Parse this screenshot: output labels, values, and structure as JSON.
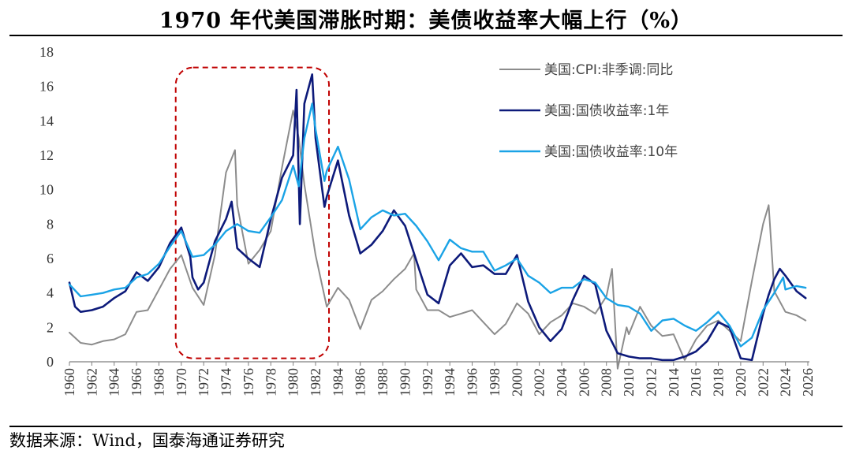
{
  "title": "1970 年代美国滞胀时期：美债收益率大幅上行（%）",
  "source": "数据来源：Wind，国泰海通证券研究",
  "chart_data": {
    "type": "line",
    "xlim": [
      1960,
      2026
    ],
    "ylim": [
      0,
      18
    ],
    "x_ticks": [
      "1960",
      "1962",
      "1964",
      "1966",
      "1968",
      "1970",
      "1972",
      "1974",
      "1976",
      "1978",
      "1980",
      "1982",
      "1984",
      "1986",
      "1988",
      "1990",
      "1992",
      "1994",
      "1996",
      "1998",
      "2000",
      "2002",
      "2004",
      "2006",
      "2008",
      "2010",
      "2012",
      "2014",
      "2016",
      "2018",
      "2020",
      "2022",
      "2024",
      "2026"
    ],
    "y_ticks": [
      "0",
      "2",
      "4",
      "6",
      "8",
      "10",
      "12",
      "14",
      "16",
      "18"
    ],
    "grid": false,
    "legend_position": "top-right",
    "highlight_box": {
      "x_range": [
        1969.5,
        1983.2
      ],
      "y_range": [
        0.2,
        17.1
      ],
      "color": "#c00000",
      "style": "dashed"
    },
    "series": [
      {
        "name": "美国:CPI:非季调:同比",
        "color": "#8c8c8c",
        "points": [
          [
            1960,
            1.7
          ],
          [
            1961,
            1.1
          ],
          [
            1962,
            1.0
          ],
          [
            1963,
            1.2
          ],
          [
            1964,
            1.3
          ],
          [
            1965,
            1.6
          ],
          [
            1966,
            2.9
          ],
          [
            1967,
            3.0
          ],
          [
            1968,
            4.2
          ],
          [
            1969,
            5.4
          ],
          [
            1970,
            6.2
          ],
          [
            1971,
            4.3
          ],
          [
            1972,
            3.3
          ],
          [
            1973,
            6.2
          ],
          [
            1974,
            11.0
          ],
          [
            1974.8,
            12.3
          ],
          [
            1975,
            9.1
          ],
          [
            1976,
            5.7
          ],
          [
            1977,
            6.5
          ],
          [
            1978,
            7.6
          ],
          [
            1979,
            11.3
          ],
          [
            1980,
            14.6
          ],
          [
            1980.5,
            13.0
          ],
          [
            1981,
            10.3
          ],
          [
            1982,
            6.2
          ],
          [
            1983,
            3.2
          ],
          [
            1984,
            4.3
          ],
          [
            1985,
            3.6
          ],
          [
            1986,
            1.9
          ],
          [
            1987,
            3.6
          ],
          [
            1988,
            4.1
          ],
          [
            1989,
            4.8
          ],
          [
            1990,
            5.4
          ],
          [
            1990.8,
            6.3
          ],
          [
            1991,
            4.2
          ],
          [
            1992,
            3.0
          ],
          [
            1993,
            3.0
          ],
          [
            1994,
            2.6
          ],
          [
            1995,
            2.8
          ],
          [
            1996,
            3.0
          ],
          [
            1997,
            2.3
          ],
          [
            1998,
            1.6
          ],
          [
            1999,
            2.2
          ],
          [
            2000,
            3.4
          ],
          [
            2001,
            2.8
          ],
          [
            2002,
            1.6
          ],
          [
            2003,
            2.3
          ],
          [
            2004,
            2.7
          ],
          [
            2005,
            3.4
          ],
          [
            2006,
            3.2
          ],
          [
            2007,
            2.8
          ],
          [
            2008,
            3.8
          ],
          [
            2008.5,
            5.4
          ],
          [
            2009,
            -0.4
          ],
          [
            2009.8,
            2.0
          ],
          [
            2010,
            1.6
          ],
          [
            2011,
            3.2
          ],
          [
            2012,
            2.1
          ],
          [
            2013,
            1.5
          ],
          [
            2014,
            1.6
          ],
          [
            2015,
            0.1
          ],
          [
            2016,
            1.3
          ],
          [
            2017,
            2.1
          ],
          [
            2018,
            2.4
          ],
          [
            2019,
            1.8
          ],
          [
            2020,
            1.2
          ],
          [
            2021,
            4.7
          ],
          [
            2022,
            8.0
          ],
          [
            2022.5,
            9.1
          ],
          [
            2023,
            4.1
          ],
          [
            2024,
            2.9
          ],
          [
            2025,
            2.7
          ],
          [
            2025.8,
            2.4
          ]
        ]
      },
      {
        "name": "美国:国债收益率:1年",
        "color": "#0d1a7a",
        "points": [
          [
            1960,
            4.6
          ],
          [
            1960.5,
            3.2
          ],
          [
            1961,
            2.9
          ],
          [
            1962,
            3.0
          ],
          [
            1963,
            3.2
          ],
          [
            1964,
            3.7
          ],
          [
            1965,
            4.1
          ],
          [
            1966,
            5.2
          ],
          [
            1967,
            4.7
          ],
          [
            1968,
            5.5
          ],
          [
            1969,
            6.9
          ],
          [
            1970,
            7.8
          ],
          [
            1970.8,
            6.1
          ],
          [
            1971,
            4.9
          ],
          [
            1971.5,
            4.2
          ],
          [
            1972,
            4.6
          ],
          [
            1973,
            7.0
          ],
          [
            1974,
            8.3
          ],
          [
            1974.5,
            9.3
          ],
          [
            1975,
            6.6
          ],
          [
            1976,
            6.0
          ],
          [
            1977,
            5.5
          ],
          [
            1978,
            8.3
          ],
          [
            1979,
            10.7
          ],
          [
            1980,
            12.0
          ],
          [
            1980.3,
            15.8
          ],
          [
            1980.6,
            8.0
          ],
          [
            1981,
            15.0
          ],
          [
            1981.7,
            16.7
          ],
          [
            1982,
            13.0
          ],
          [
            1982.8,
            9.0
          ],
          [
            1983,
            9.6
          ],
          [
            1984,
            11.7
          ],
          [
            1985,
            8.5
          ],
          [
            1986,
            6.3
          ],
          [
            1987,
            6.8
          ],
          [
            1988,
            7.6
          ],
          [
            1989,
            8.8
          ],
          [
            1990,
            7.9
          ],
          [
            1991,
            5.9
          ],
          [
            1992,
            3.9
          ],
          [
            1993,
            3.4
          ],
          [
            1994,
            5.6
          ],
          [
            1995,
            6.3
          ],
          [
            1996,
            5.5
          ],
          [
            1997,
            5.6
          ],
          [
            1998,
            5.1
          ],
          [
            1999,
            5.1
          ],
          [
            2000,
            6.2
          ],
          [
            2001,
            3.5
          ],
          [
            2002,
            2.0
          ],
          [
            2003,
            1.2
          ],
          [
            2004,
            1.9
          ],
          [
            2005,
            3.6
          ],
          [
            2006,
            5.0
          ],
          [
            2007,
            4.5
          ],
          [
            2008,
            1.8
          ],
          [
            2009,
            0.5
          ],
          [
            2010,
            0.3
          ],
          [
            2011,
            0.2
          ],
          [
            2012,
            0.2
          ],
          [
            2013,
            0.1
          ],
          [
            2014,
            0.1
          ],
          [
            2015,
            0.3
          ],
          [
            2016,
            0.6
          ],
          [
            2017,
            1.2
          ],
          [
            2018,
            2.3
          ],
          [
            2019,
            2.0
          ],
          [
            2020,
            0.2
          ],
          [
            2021,
            0.1
          ],
          [
            2022,
            2.8
          ],
          [
            2022.5,
            3.9
          ],
          [
            2023,
            4.8
          ],
          [
            2023.5,
            5.4
          ],
          [
            2024,
            5.0
          ],
          [
            2025,
            4.1
          ],
          [
            2025.8,
            3.7
          ]
        ]
      },
      {
        "name": "美国:国债收益率:10年",
        "color": "#1aa3e6",
        "points": [
          [
            1960,
            4.5
          ],
          [
            1961,
            3.8
          ],
          [
            1962,
            3.9
          ],
          [
            1963,
            4.0
          ],
          [
            1964,
            4.2
          ],
          [
            1965,
            4.3
          ],
          [
            1966,
            4.9
          ],
          [
            1967,
            5.1
          ],
          [
            1968,
            5.7
          ],
          [
            1969,
            6.7
          ],
          [
            1970,
            7.6
          ],
          [
            1971,
            6.1
          ],
          [
            1972,
            6.2
          ],
          [
            1973,
            6.8
          ],
          [
            1974,
            7.6
          ],
          [
            1975,
            8.0
          ],
          [
            1976,
            7.6
          ],
          [
            1977,
            7.5
          ],
          [
            1978,
            8.4
          ],
          [
            1979,
            9.4
          ],
          [
            1980,
            11.4
          ],
          [
            1980.5,
            10.2
          ],
          [
            1981,
            13.0
          ],
          [
            1981.7,
            15.0
          ],
          [
            1982,
            13.5
          ],
          [
            1982.8,
            10.5
          ],
          [
            1983,
            11.1
          ],
          [
            1984,
            12.5
          ],
          [
            1985,
            10.6
          ],
          [
            1986,
            7.7
          ],
          [
            1987,
            8.4
          ],
          [
            1988,
            8.8
          ],
          [
            1989,
            8.5
          ],
          [
            1990,
            8.6
          ],
          [
            1991,
            7.9
          ],
          [
            1992,
            7.0
          ],
          [
            1993,
            5.9
          ],
          [
            1994,
            7.1
          ],
          [
            1995,
            6.6
          ],
          [
            1996,
            6.4
          ],
          [
            1997,
            6.4
          ],
          [
            1998,
            5.3
          ],
          [
            1999,
            5.6
          ],
          [
            2000,
            6.0
          ],
          [
            2001,
            5.0
          ],
          [
            2002,
            4.6
          ],
          [
            2003,
            4.0
          ],
          [
            2004,
            4.3
          ],
          [
            2005,
            4.3
          ],
          [
            2006,
            4.8
          ],
          [
            2007,
            4.6
          ],
          [
            2008,
            3.7
          ],
          [
            2009,
            3.3
          ],
          [
            2010,
            3.2
          ],
          [
            2011,
            2.8
          ],
          [
            2012,
            1.8
          ],
          [
            2013,
            2.4
          ],
          [
            2014,
            2.5
          ],
          [
            2015,
            2.1
          ],
          [
            2016,
            1.8
          ],
          [
            2017,
            2.3
          ],
          [
            2018,
            2.9
          ],
          [
            2019,
            2.1
          ],
          [
            2020,
            0.9
          ],
          [
            2021,
            1.4
          ],
          [
            2022,
            3.0
          ],
          [
            2023,
            4.0
          ],
          [
            2023.8,
            4.9
          ],
          [
            2024,
            4.2
          ],
          [
            2025,
            4.4
          ],
          [
            2025.8,
            4.3
          ]
        ]
      }
    ]
  }
}
